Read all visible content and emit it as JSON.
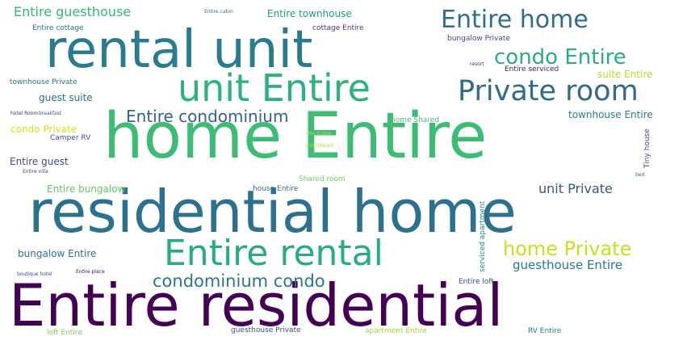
{
  "words": [
    {
      "text": "home Entire",
      "color": "#3dbc74"
    },
    {
      "text": "residential home",
      "color": "#2c718e"
    },
    {
      "text": "Entire residential",
      "color": "#440154"
    },
    {
      "text": "rental unit",
      "color": "#297b8e"
    },
    {
      "text": "unit Entire",
      "color": "#2db27d"
    },
    {
      "text": "Private room",
      "color": "#306a8e"
    },
    {
      "text": "Entire rental",
      "color": "#27ad81"
    },
    {
      "text": "Entire home",
      "color": "#2e6e8e"
    },
    {
      "text": "condo Entire",
      "color": "#28ae80"
    },
    {
      "text": "Entire condominium",
      "color": "#33628d"
    },
    {
      "text": "home Private",
      "color": "#c8e020"
    },
    {
      "text": "condominium condo",
      "color": "#2a788e"
    },
    {
      "text": "unit Private",
      "color": "#3b528b"
    },
    {
      "text": "guesthouse Entire",
      "color": "#2a788e"
    },
    {
      "text": "Entire guesthouse",
      "color": "#35b779"
    },
    {
      "text": "Entire townhouse",
      "color": "#1fa187"
    },
    {
      "text": "Entire cottage",
      "color": "#2c728e"
    },
    {
      "text": "cottage Entire",
      "color": "#424086"
    },
    {
      "text": "Entire cabin",
      "color": "#31688e"
    },
    {
      "text": "bungalow Private",
      "color": "#404688"
    },
    {
      "text": "resort",
      "color": "#482878"
    },
    {
      "text": "Entire serviced",
      "color": "#48186a"
    },
    {
      "text": "suite Entire",
      "color": "#b5de2b"
    },
    {
      "text": "townhouse Private",
      "color": "#2c728e"
    },
    {
      "text": "guest suite",
      "color": "#2e6e8e"
    },
    {
      "text": "hotel Room",
      "color": "#46337e"
    },
    {
      "text": "breakfast",
      "color": "#3b528b"
    },
    {
      "text": "condo Private",
      "color": "#d5e21a"
    },
    {
      "text": "Camper RV",
      "color": "#3b528b"
    },
    {
      "text": "home Shared",
      "color": "#4ac16d"
    },
    {
      "text": "villa Entire",
      "color": "#bddf26"
    },
    {
      "text": "unit Shared",
      "color": "#bddf26"
    },
    {
      "text": "townhouse Entire",
      "color": "#26828e"
    },
    {
      "text": "Entire guest",
      "color": "#3e4a89"
    },
    {
      "text": "Entire villa",
      "color": "#433e85"
    },
    {
      "text": "Tiny house",
      "color": "#3e4989"
    },
    {
      "text": "bed",
      "color": "#31688e"
    },
    {
      "text": "Shared room",
      "color": "#7ad151"
    },
    {
      "text": "Entire bungalow",
      "color": "#5ec962"
    },
    {
      "text": "house Entire",
      "color": "#2e6e8e"
    },
    {
      "text": "serviced apartment",
      "color": "#23888e"
    },
    {
      "text": "bungalow Entire",
      "color": "#2c728e"
    },
    {
      "text": "boutique hotel",
      "color": "#3e4a89"
    },
    {
      "text": "Entire place",
      "color": "#440154"
    },
    {
      "text": "Entire loft",
      "color": "#39568c"
    },
    {
      "text": "loft Entire",
      "color": "#7ad151"
    },
    {
      "text": "guesthouse Private",
      "color": "#3b528b"
    },
    {
      "text": "apartment Entire",
      "color": "#a0da39"
    },
    {
      "text": "RV Entire",
      "color": "#2a788e"
    }
  ]
}
